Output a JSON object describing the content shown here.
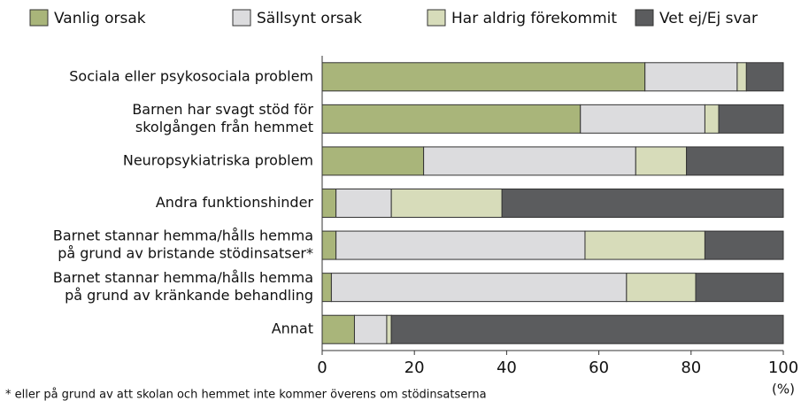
{
  "chart_data": {
    "type": "stacked-bar-horizontal",
    "categories": [
      [
        "Sociala eller psykosociala problem"
      ],
      [
        "Barnen har svagt stöd för",
        "skolgången från hemmet"
      ],
      [
        "Neuropsykiatriska problem"
      ],
      [
        "Andra funktionshinder"
      ],
      [
        "Barnet stannar hemma/hålls hemma",
        "på grund av bristande stödinsatser*"
      ],
      [
        "Barnet stannar hemma/hålls hemma",
        "på grund av kränkande behandling"
      ],
      [
        "Annat"
      ]
    ],
    "series": [
      {
        "name": "Vanlig orsak",
        "color": "#a9b57a",
        "values": [
          70,
          56,
          22,
          3,
          3,
          2,
          7
        ]
      },
      {
        "name": "Sällsynt orsak",
        "color": "#dcdcde",
        "values": [
          20,
          27,
          46,
          12,
          54,
          64,
          7
        ]
      },
      {
        "name": "Har aldrig förekommit",
        "color": "#d7dcba",
        "values": [
          2,
          3,
          11,
          24,
          26,
          15,
          1
        ]
      },
      {
        "name": "Vet ej/Ej svar",
        "color": "#5b5c5e",
        "values": [
          8,
          14,
          21,
          61,
          17,
          19,
          85
        ]
      }
    ],
    "xlim": [
      0,
      100
    ],
    "xticks": [
      0,
      20,
      40,
      60,
      80,
      100
    ],
    "x_label": "(%)",
    "footnote": "* eller på grund av att skolan och hemmet inte kommer överens om stödinsatserna",
    "legend": "top"
  }
}
